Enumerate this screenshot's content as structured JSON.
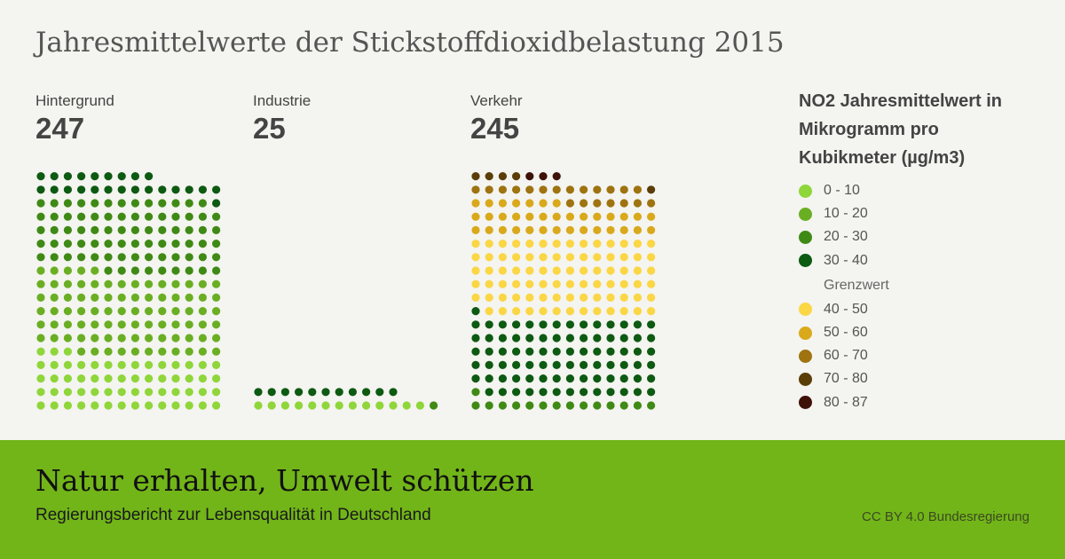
{
  "title": "Jahresmittelwerte der Stickstoffdioxidbelastung 2015",
  "chart_data": {
    "type": "waffle",
    "title": "Jahresmittelwerte der Stickstoffdioxidbelastung 2015",
    "groups": [
      {
        "name": "Hintergrund",
        "total": "247",
        "counts": {
          "0 - 10": 59,
          "10 - 20": 86,
          "20 - 30": 78,
          "30 - 40": 24
        }
      },
      {
        "name": "Industrie",
        "total": "25",
        "counts": {
          "0 - 10": 13,
          "20 - 30": 1,
          "30 - 40": 11
        }
      },
      {
        "name": "Verkehr",
        "total": "245",
        "counts": {
          "20 - 30": 15,
          "30 - 40": 84,
          "40 - 50": 83,
          "50 - 60": 35,
          "60 - 70": 20,
          "70 - 80": 5,
          "80 - 87": 3
        }
      }
    ],
    "legend": {
      "title": "NO2 Jahresmittelwert in Mikrogramm pro Kubikmeter (µg/m3)",
      "items": [
        {
          "label": "0 - 10",
          "color": "#8fd63a"
        },
        {
          "label": "10 - 20",
          "color": "#6aaf23"
        },
        {
          "label": "20 - 30",
          "color": "#3f8a15"
        },
        {
          "label": "30 - 40",
          "color": "#0d5a12"
        },
        {
          "label": "Grenzwert",
          "threshold": true
        },
        {
          "label": "40 - 50",
          "color": "#fbd645"
        },
        {
          "label": "50 - 60",
          "color": "#d9a91b"
        },
        {
          "label": "60 - 70",
          "color": "#9e7310"
        },
        {
          "label": "70 - 80",
          "color": "#5b3d08"
        },
        {
          "label": "80 - 87",
          "color": "#3e1208"
        }
      ]
    }
  },
  "footer": {
    "title": "Natur erhalten, Umwelt schützen",
    "subtitle": "Regierungsbericht zur Lebensqualität in Deutschland",
    "credit": "CC BY 4.0 Bundesregierung"
  }
}
